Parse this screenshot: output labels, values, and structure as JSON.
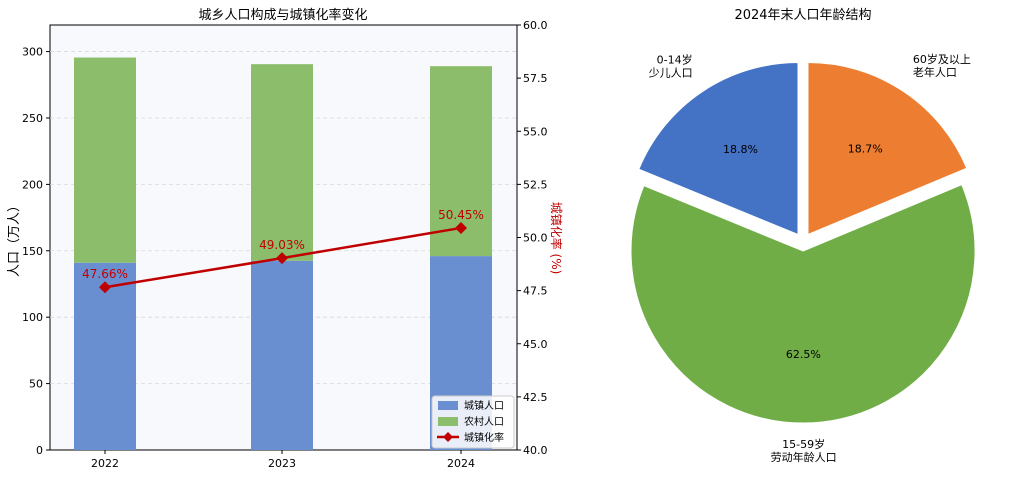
{
  "chart_data": [
    {
      "type": "bar",
      "title": "城乡人口构成与城镇化率变化",
      "ylabel": "人口（万人）",
      "y2label": "城镇化率 (%)",
      "categories": [
        "2022",
        "2023",
        "2024"
      ],
      "ylim": [
        0,
        320
      ],
      "y2lim": [
        40.0,
        60.0
      ],
      "yticks": [
        "0",
        "50",
        "100",
        "150",
        "200",
        "250",
        "300"
      ],
      "y2ticks": [
        "40.0",
        "42.5",
        "45.0",
        "47.5",
        "50.0",
        "52.5",
        "55.0",
        "57.5",
        "60.0"
      ],
      "stacked": true,
      "series": [
        {
          "name": "城镇人口",
          "kind": "bar",
          "color": "#6a8fd0",
          "values": [
            141,
            142.5,
            146
          ]
        },
        {
          "name": "农村人口",
          "kind": "bar",
          "color": "#8bbd6b",
          "values": [
            154.5,
            148,
            143
          ]
        },
        {
          "name": "城镇化率",
          "kind": "line",
          "axis": "right",
          "color": "#c00000",
          "values": [
            47.66,
            49.03,
            50.45
          ],
          "labels": [
            "47.66%",
            "49.03%",
            "50.45%"
          ]
        }
      ],
      "legend": "bottom-right",
      "grid": true
    },
    {
      "type": "pie",
      "title": "2024年末人口年龄结构",
      "slices": [
        {
          "label_line1": "0-14岁",
          "label_line2": "少儿人口",
          "value": 18.8,
          "pct": "18.8%",
          "color": "#4472c4"
        },
        {
          "label_line1": "60岁及以上",
          "label_line2": "老年人口",
          "value": 18.7,
          "pct": "18.7%",
          "color": "#ed7d31"
        },
        {
          "label_line1": "15-59岁",
          "label_line2": "劳动年龄人口",
          "value": 62.5,
          "pct": "62.5%",
          "color": "#70ad47"
        }
      ],
      "exploded": true
    }
  ]
}
